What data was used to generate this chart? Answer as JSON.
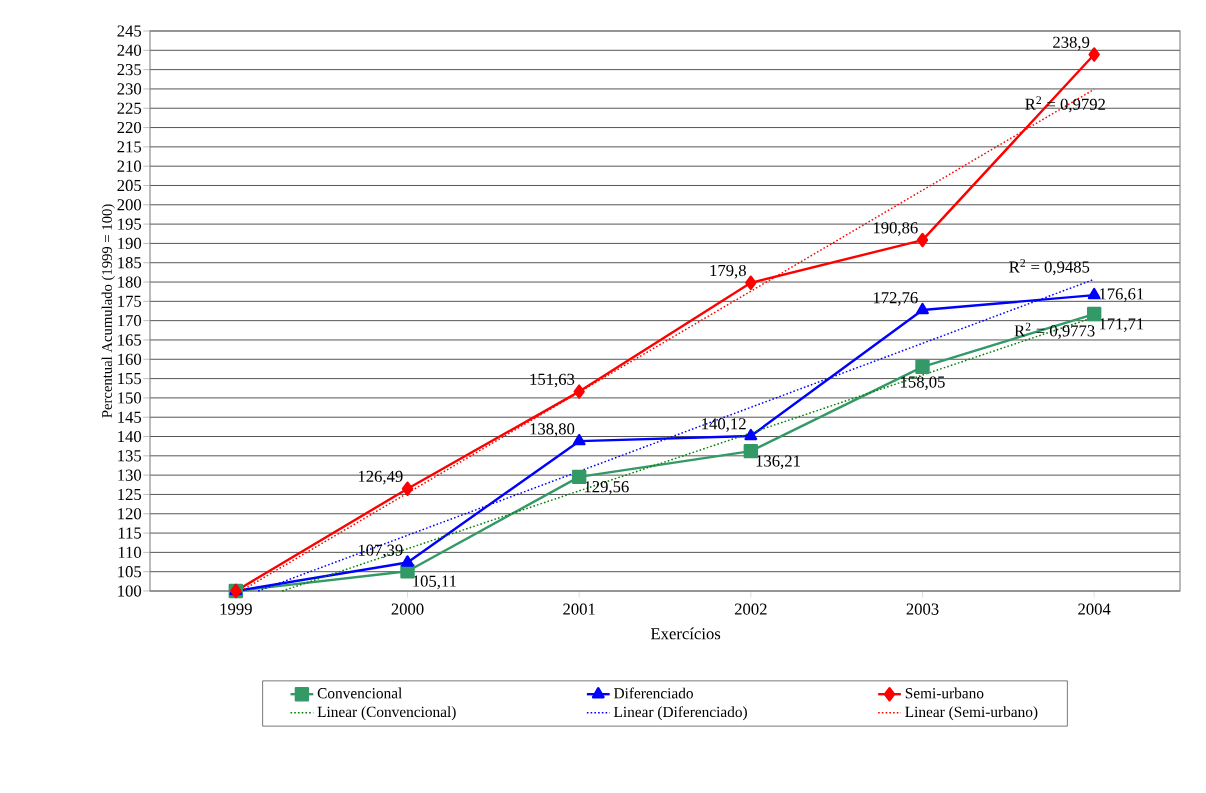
{
  "chart_data": {
    "type": "line",
    "xlabel": "Exercícios",
    "ylabel": "Percentual Acumulado (1999 = 100)",
    "x": [
      1999,
      2000,
      2001,
      2002,
      2003,
      2004
    ],
    "xlim": [
      1998.5,
      2004.5
    ],
    "xticks": [
      1999,
      2000,
      2001,
      2002,
      2003,
      2004
    ],
    "ylim": [
      100,
      245
    ],
    "yticks": [
      100,
      105,
      110,
      115,
      120,
      125,
      130,
      135,
      140,
      145,
      150,
      155,
      160,
      165,
      170,
      175,
      180,
      185,
      190,
      195,
      200,
      205,
      210,
      215,
      220,
      225,
      230,
      235,
      240,
      245
    ],
    "grid": "y",
    "legend": "bottom",
    "series": [
      {
        "name": "Convencional",
        "color": "#339966",
        "marker": "square",
        "line_style": "solid",
        "values": [
          100,
          105.11,
          129.56,
          136.21,
          158.05,
          171.71
        ],
        "value_labels": [
          null,
          "105,11",
          "129,56",
          "136,21",
          "158,05",
          "171,71"
        ]
      },
      {
        "name": "Diferenciado",
        "color": "#0000ff",
        "marker": "triangle",
        "line_style": "solid",
        "values": [
          100,
          107.39,
          138.8,
          140.12,
          172.76,
          176.61
        ],
        "value_labels": [
          null,
          "107,39",
          "138,80",
          "140,12",
          "172,76",
          "176,61"
        ]
      },
      {
        "name": "Semi-urbano",
        "color": "#ff0000",
        "marker": "diamond",
        "line_style": "solid",
        "values": [
          100,
          126.49,
          151.63,
          179.8,
          190.86,
          238.9
        ],
        "value_labels": [
          null,
          "126,49",
          "151,63",
          "179,8",
          "190,86",
          "238,9"
        ]
      },
      {
        "name": "Linear (Convencional)",
        "color": "#008000",
        "marker": "none",
        "line_style": "dotted",
        "x": [
          1999.27,
          2004
        ],
        "values": [
          100,
          170.9
        ]
      },
      {
        "name": "Linear (Diferenciado)",
        "color": "#0000ff",
        "marker": "none",
        "line_style": "dotted",
        "x": [
          1999.13,
          2004
        ],
        "values": [
          100,
          180.7
        ]
      },
      {
        "name": "Linear (Semi-urbano)",
        "color": "#ff0000",
        "marker": "none",
        "line_style": "dotted",
        "x": [
          1999.03,
          2004
        ],
        "values": [
          100,
          229.9
        ]
      }
    ],
    "annotations": [
      "R$^{2}$ = 0,9773",
      "R$^{2}$ = 0,9485",
      "R$^{2}$ = 0,9792"
    ]
  }
}
